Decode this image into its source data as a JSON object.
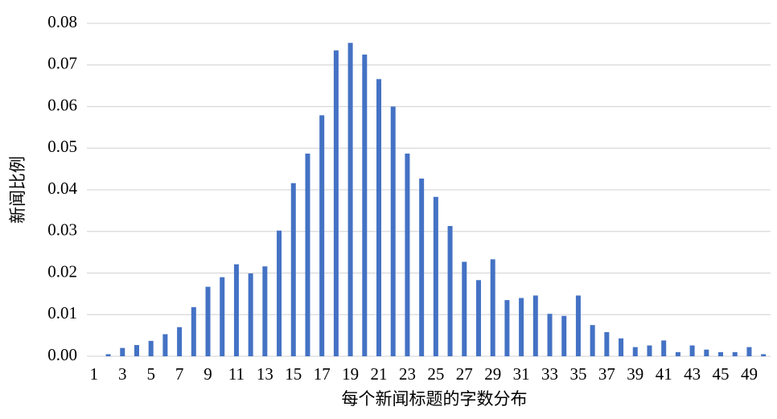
{
  "chart_data": {
    "type": "bar",
    "xlabel": "每个新闻标题的字数分布",
    "ylabel": "新闻比例",
    "categories": [
      1,
      null,
      3,
      null,
      5,
      null,
      7,
      null,
      9,
      null,
      11,
      null,
      13,
      null,
      15,
      null,
      17,
      null,
      19,
      null,
      21,
      null,
      23,
      null,
      25,
      null,
      27,
      null,
      29,
      null,
      31,
      null,
      33,
      null,
      35,
      null,
      37,
      null,
      39,
      null,
      41,
      null,
      43,
      null,
      45,
      null,
      49,
      null
    ],
    "values": [
      0,
      0.0005,
      0.002,
      0.0027,
      0.0037,
      0.0053,
      0.007,
      0.0118,
      0.0167,
      0.019,
      0.0221,
      0.0199,
      0.0216,
      0.0302,
      0.0416,
      0.0487,
      0.0579,
      0.0735,
      0.0753,
      0.0725,
      0.0666,
      0.06,
      0.0487,
      0.0427,
      0.0383,
      0.0313,
      0.0227,
      0.0183,
      0.0233,
      0.0135,
      0.014,
      0.0146,
      0.0102,
      0.0097,
      0.0146,
      0.0075,
      0.0058,
      0.0043,
      0.0022,
      0.0026,
      0.0038,
      0.001,
      0.0026,
      0.0016,
      0.001,
      0.001,
      0.0022,
      0.0005
    ],
    "color": "#4472c4",
    "ylim": [
      0,
      0.08
    ],
    "yticks": [
      {
        "value": 0,
        "label": "0.00"
      },
      {
        "value": 0.01,
        "label": "0.01"
      },
      {
        "value": 0.02,
        "label": "0.02"
      },
      {
        "value": 0.03,
        "label": "0.03"
      },
      {
        "value": 0.04,
        "label": "0.04"
      },
      {
        "value": 0.05,
        "label": "0.05"
      },
      {
        "value": 0.06,
        "label": "0.06"
      },
      {
        "value": 0.07,
        "label": "0.07"
      },
      {
        "value": 0.08,
        "label": "0.08"
      }
    ],
    "grid": true
  }
}
